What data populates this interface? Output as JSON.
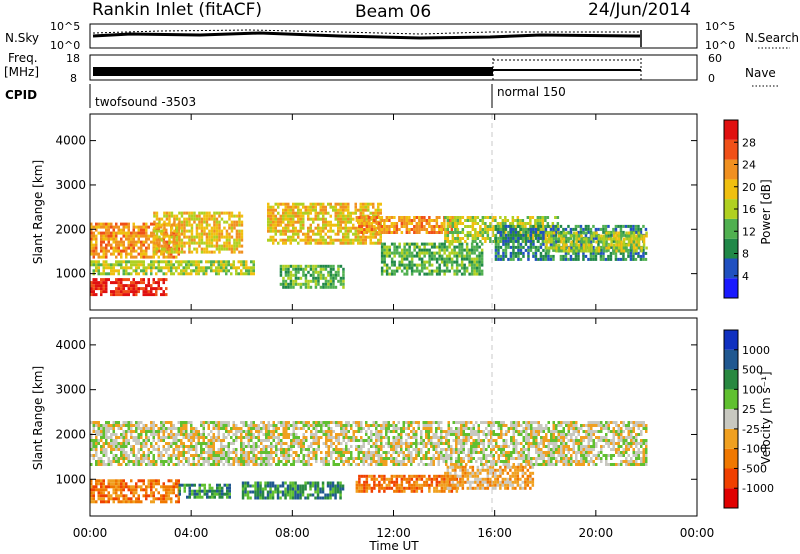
{
  "header": {
    "station": "Rankin Inlet (fitACF)",
    "beam": "Beam 06",
    "date": "24/Jun/2014"
  },
  "panels": {
    "nsky_label": "N.Sky",
    "nsky_ticks": [
      "10^5",
      "10^0"
    ],
    "nsearch_ticks": [
      "10^5",
      "10^0"
    ],
    "nsearch_label": "N.Search",
    "freq_label_1": "Freq.",
    "freq_label_2": "[MHz]",
    "freq_ticks": [
      "18",
      "8"
    ],
    "nave_ticks": [
      "60",
      "0"
    ],
    "nave_label": "Nave",
    "cpid_label": "CPID",
    "cpid_modes": [
      "twofsound -3503",
      "normal 150"
    ]
  },
  "colors": {
    "power": [
      "#1a1aff",
      "#2050c0",
      "#208848",
      "#50b050",
      "#b0d020",
      "#f0c010",
      "#f09020",
      "#f05018",
      "#e01010"
    ],
    "velocity": [
      "#e00000",
      "#f04000",
      "#f07800",
      "#f0a020",
      "#c8c8c0",
      "#60c030",
      "#288840",
      "#205890",
      "#1030c0"
    ],
    "scatter_ground": "#c8c8c0"
  },
  "chart_data": [
    {
      "type": "heatmap",
      "name": "power",
      "ylabel": "Slant Range [km]",
      "xlabel": "Time UT",
      "x_ticks": [
        "00:00",
        "04:00",
        "08:00",
        "12:00",
        "16:00",
        "20:00",
        "00:00"
      ],
      "y_ticks": [
        "1000",
        "2000",
        "3000",
        "4000"
      ],
      "xlim_hours": [
        0,
        24
      ],
      "ylim_km": [
        180,
        4600
      ],
      "colorbar_label": "Power [dB]",
      "colorbar_ticks": [
        "28",
        "24",
        "20",
        "16",
        "12",
        "8",
        "4"
      ],
      "regions": [
        {
          "t0": 0.0,
          "t1": 3.5,
          "r0": 1400,
          "r1": 2150,
          "level": 6
        },
        {
          "t0": 2.5,
          "t1": 6.0,
          "r0": 1500,
          "r1": 2400,
          "level": 5
        },
        {
          "t0": 0.0,
          "t1": 3.0,
          "r0": 500,
          "r1": 900,
          "level": 8
        },
        {
          "t0": 0.0,
          "t1": 6.5,
          "r0": 1000,
          "r1": 1300,
          "level": 4
        },
        {
          "t0": 7.0,
          "t1": 11.5,
          "r0": 1700,
          "r1": 2600,
          "level": 5
        },
        {
          "t0": 7.5,
          "t1": 10.0,
          "r0": 700,
          "r1": 1200,
          "level": 3
        },
        {
          "t0": 10.5,
          "t1": 14.5,
          "r0": 1900,
          "r1": 2300,
          "level": 6
        },
        {
          "t0": 11.5,
          "t1": 15.5,
          "r0": 1000,
          "r1": 1700,
          "level": 3
        },
        {
          "t0": 14.0,
          "t1": 18.5,
          "r0": 1700,
          "r1": 2300,
          "level": 4
        },
        {
          "t0": 16.0,
          "t1": 22.0,
          "r0": 1300,
          "r1": 2100,
          "level": 2
        },
        {
          "t0": 18.0,
          "t1": 22.0,
          "r0": 1500,
          "r1": 1950,
          "level": 4
        }
      ]
    },
    {
      "type": "heatmap",
      "name": "velocity",
      "ylabel": "Slant Range [km]",
      "xlabel": "Time UT",
      "x_ticks": [
        "00:00",
        "04:00",
        "08:00",
        "12:00",
        "16:00",
        "20:00",
        "00:00"
      ],
      "y_ticks": [
        "1000",
        "2000",
        "3000",
        "4000"
      ],
      "xlim_hours": [
        0,
        24
      ],
      "ylim_km": [
        180,
        4600
      ],
      "colorbar_label": "Velocity [m s⁻¹]",
      "colorbar_ticks": [
        "1000",
        "500",
        "100",
        "25",
        "-25",
        "-100",
        "-500",
        "-1000"
      ],
      "regions": [
        {
          "t0": 0.0,
          "t1": 22.0,
          "r0": 1300,
          "r1": 2300,
          "level": 4
        },
        {
          "t0": 0.0,
          "t1": 3.5,
          "r0": 500,
          "r1": 1000,
          "level": 2
        },
        {
          "t0": 3.5,
          "t1": 5.5,
          "r0": 600,
          "r1": 900,
          "level": 6
        },
        {
          "t0": 6.0,
          "t1": 10.0,
          "r0": 600,
          "r1": 950,
          "level": 6
        },
        {
          "t0": 10.5,
          "t1": 14.5,
          "r0": 700,
          "r1": 1100,
          "level": 2
        },
        {
          "t0": 14.0,
          "t1": 17.5,
          "r0": 800,
          "r1": 1300,
          "level": 3
        }
      ]
    }
  ]
}
